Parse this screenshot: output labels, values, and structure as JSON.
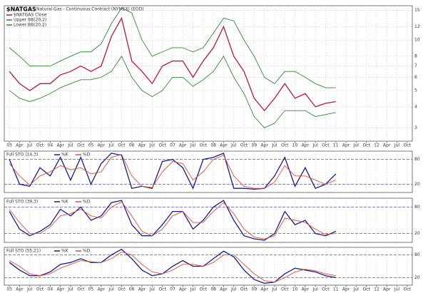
{
  "chart_data": [
    {
      "type": "line",
      "title": "$NATGAS",
      "subtitle": "Natural Gas - Continuous Contract (NYMEX) (EOD)",
      "log_scale": true,
      "grid": true,
      "categories": [
        "03",
        "Apr",
        "Jul",
        "Oct",
        "04",
        "Apr",
        "Jul",
        "Oct",
        "05",
        "Apr",
        "Jul",
        "Oct",
        "06",
        "Apr",
        "Jul",
        "Oct",
        "07",
        "Apr",
        "Jul",
        "Oct",
        "08",
        "Apr",
        "Jul",
        "Oct",
        "09",
        "Apr",
        "Jul",
        "Oct",
        "10",
        "Apr",
        "Jul",
        "Oct",
        "11",
        "Apr",
        "Jul",
        "Oct",
        "12",
        "Apr",
        "Jul",
        "Oct"
      ],
      "ylim": [
        2.5,
        16
      ],
      "yticks": [
        3,
        4,
        5,
        6,
        7,
        8,
        10,
        12,
        15
      ],
      "series": [
        {
          "name": "$NATGAS Close",
          "color": "#c0143c",
          "values": [
            6.5,
            5.5,
            5.0,
            5.5,
            5.5,
            6.2,
            6.5,
            7.0,
            6.5,
            7.0,
            10.5,
            13.5,
            7.5,
            6.5,
            5.5,
            7.0,
            7.5,
            7.5,
            6.0,
            7.5,
            9.0,
            12.0,
            8.0,
            6.5,
            4.5,
            3.8,
            4.5,
            5.5,
            4.5,
            4.8,
            4.0,
            4.2,
            4.3,
            null,
            null,
            null,
            null,
            null,
            null,
            null
          ]
        },
        {
          "name": "Upper BB(20,2)",
          "color": "#2e8b2e",
          "values": [
            9.0,
            8.0,
            7.0,
            7.0,
            7.0,
            7.5,
            8.0,
            8.5,
            8.5,
            9.5,
            12.5,
            15.5,
            14.5,
            10.0,
            8.0,
            8.5,
            9.0,
            9.0,
            8.5,
            9.0,
            11.0,
            13.5,
            13.0,
            10.0,
            8.0,
            6.0,
            5.5,
            6.5,
            6.5,
            6.0,
            5.5,
            5.2,
            5.2,
            null,
            null,
            null,
            null,
            null,
            null,
            null
          ]
        },
        {
          "name": "Lower BB(20,2)",
          "color": "#2e8b2e",
          "values": [
            5.0,
            4.5,
            4.3,
            4.5,
            4.8,
            5.2,
            5.5,
            5.8,
            5.8,
            6.0,
            6.5,
            8.0,
            6.0,
            5.0,
            4.6,
            5.0,
            6.0,
            6.0,
            5.3,
            5.8,
            6.5,
            8.0,
            6.0,
            4.8,
            3.5,
            3.0,
            3.2,
            3.8,
            3.8,
            3.8,
            3.5,
            3.6,
            3.7,
            null,
            null,
            null,
            null,
            null,
            null,
            null
          ]
        }
      ]
    },
    {
      "type": "line",
      "title": "Full STO (14,3)",
      "ylim": [
        0,
        100
      ],
      "yticks": [
        20,
        80
      ],
      "grid": true,
      "series": [
        {
          "name": "%K",
          "color": "#1a1a8c",
          "values": [
            80,
            20,
            15,
            60,
            40,
            85,
            30,
            85,
            20,
            70,
            95,
            90,
            10,
            15,
            10,
            75,
            80,
            60,
            10,
            80,
            85,
            95,
            10,
            10,
            8,
            10,
            40,
            85,
            15,
            60,
            10,
            20,
            45,
            null,
            null,
            null,
            null,
            null,
            null,
            null
          ]
        },
        {
          "name": "%D",
          "color": "#e0503a",
          "values": [
            70,
            40,
            18,
            40,
            50,
            65,
            55,
            60,
            45,
            50,
            85,
            92,
            40,
            15,
            12,
            50,
            75,
            70,
            30,
            50,
            80,
            90,
            40,
            15,
            10,
            10,
            25,
            65,
            40,
            40,
            30,
            20,
            30,
            null,
            null,
            null,
            null,
            null,
            null,
            null
          ]
        }
      ]
    },
    {
      "type": "line",
      "title": "Full STO (39,3)",
      "ylim": [
        0,
        100
      ],
      "yticks": [
        20,
        80
      ],
      "grid": true,
      "series": [
        {
          "name": "%K",
          "color": "#1a1a8c",
          "values": [
            70,
            30,
            15,
            25,
            40,
            75,
            60,
            80,
            50,
            60,
            90,
            95,
            40,
            15,
            15,
            40,
            70,
            70,
            30,
            50,
            80,
            95,
            50,
            15,
            8,
            5,
            20,
            70,
            40,
            50,
            20,
            15,
            25,
            null,
            null,
            null,
            null,
            null,
            null,
            null
          ]
        },
        {
          "name": "%D",
          "color": "#e0503a",
          "values": [
            75,
            45,
            20,
            20,
            35,
            60,
            65,
            75,
            60,
            55,
            80,
            92,
            60,
            25,
            15,
            30,
            60,
            70,
            45,
            45,
            70,
            90,
            65,
            30,
            12,
            8,
            15,
            55,
            50,
            45,
            30,
            18,
            20,
            null,
            null,
            null,
            null,
            null,
            null,
            null
          ]
        }
      ]
    },
    {
      "type": "line",
      "title": "Full STO (55,21)",
      "ylim": [
        0,
        100
      ],
      "yticks": [
        20,
        80
      ],
      "grid": true,
      "series": [
        {
          "name": "%K",
          "color": "#1a1a8c",
          "values": [
            60,
            40,
            25,
            25,
            35,
            55,
            60,
            70,
            60,
            60,
            80,
            95,
            70,
            40,
            25,
            30,
            50,
            65,
            50,
            50,
            70,
            90,
            75,
            40,
            15,
            5,
            8,
            30,
            45,
            40,
            35,
            25,
            20,
            null,
            null,
            null,
            null,
            null,
            null,
            null
          ]
        },
        {
          "name": "%D",
          "color": "#e0503a",
          "values": [
            65,
            50,
            30,
            25,
            30,
            45,
            55,
            65,
            62,
            60,
            70,
            88,
            80,
            55,
            35,
            30,
            40,
            55,
            55,
            50,
            60,
            80,
            80,
            55,
            30,
            12,
            8,
            20,
            35,
            42,
            38,
            30,
            25,
            null,
            null,
            null,
            null,
            null,
            null,
            null
          ]
        }
      ]
    }
  ]
}
